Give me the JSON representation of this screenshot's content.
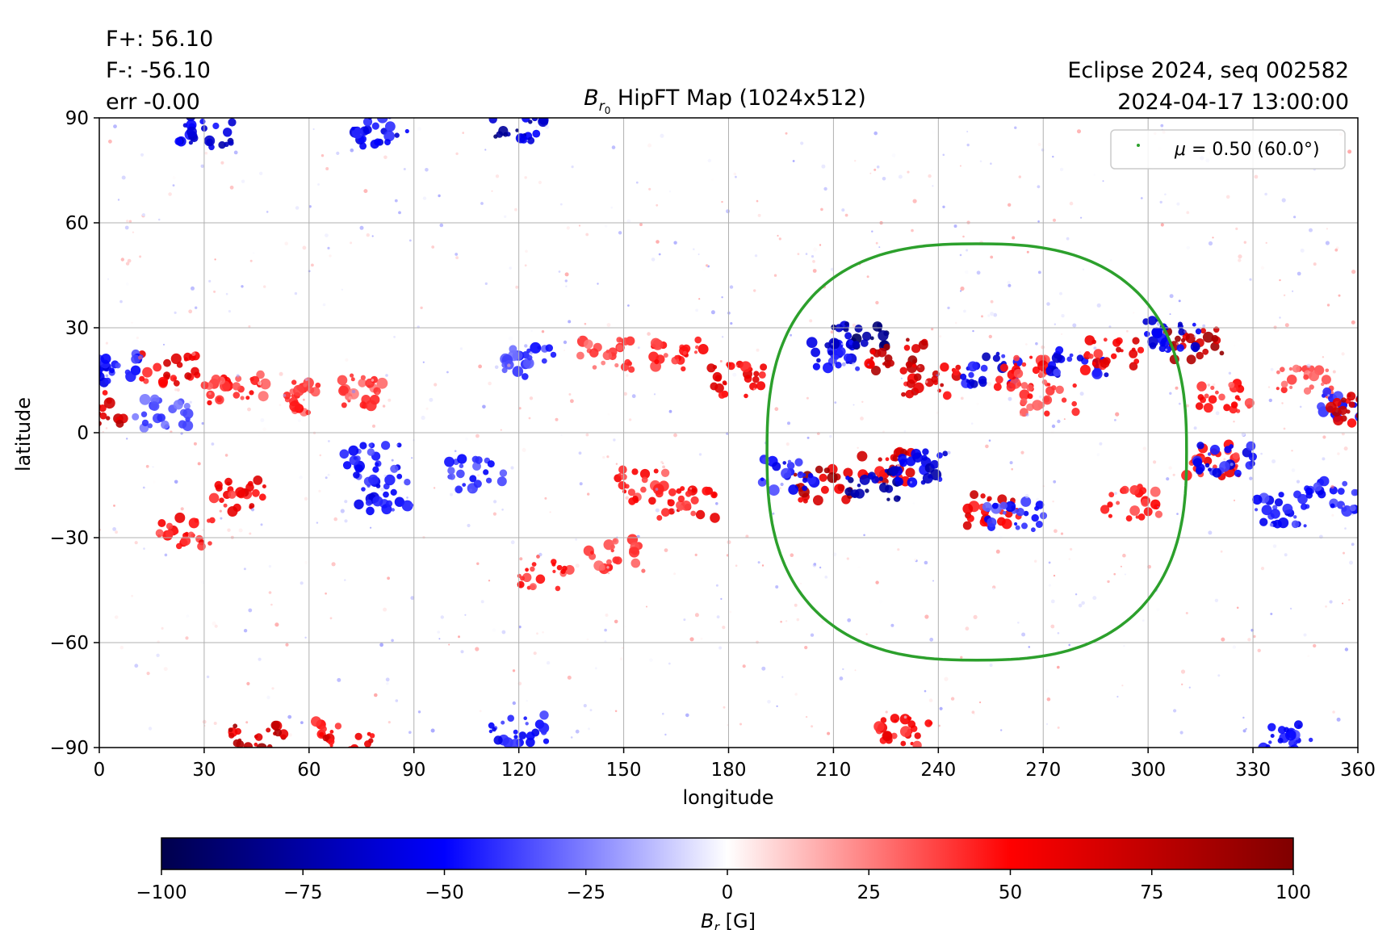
{
  "header": {
    "flux_pos": "F+: 56.10",
    "flux_neg": "F-: -56.10",
    "err": "err -0.00",
    "title_sym": "B",
    "title_sub": "r",
    "title_subsub": "0",
    "title_rest": " HipFT Map (1024x512)",
    "event": "Eclipse 2024, seq 002582",
    "datetime": "2024-04-17 13:00:00"
  },
  "chart_data": {
    "type": "heatmap",
    "title": "Br0 HipFT Map (1024x512)",
    "xlabel": "longitude",
    "ylabel": "latitude",
    "xlim": [
      0,
      360
    ],
    "ylim": [
      -90,
      90
    ],
    "x_ticks": [
      0,
      30,
      60,
      90,
      120,
      150,
      180,
      210,
      240,
      270,
      300,
      330,
      360
    ],
    "y_ticks": [
      -90,
      -60,
      -30,
      0,
      30,
      60,
      90
    ],
    "y_tick_labels": [
      "−90",
      "−60",
      "−30",
      "0",
      "30",
      "60",
      "90"
    ],
    "grid": true,
    "legend": {
      "placement": "top-right",
      "label_prefix": "μ = ",
      "label_value": "0.50 (60.0°)",
      "color": "#2ca02c"
    },
    "overlay_curve": {
      "name": "μ = 0.50 (60.0°)",
      "center_lon": 251,
      "center_lat": -6,
      "extent_lon": [
        191,
        311
      ],
      "extent_lat": [
        -65,
        54
      ],
      "color": "#2ca02c"
    },
    "colorbar": {
      "label_sym": "B",
      "label_sub": "r",
      "label_unit": " [G]",
      "vmin": -100,
      "vmax": 100,
      "ticks": [
        -100,
        -75,
        -50,
        -25,
        0,
        25,
        50,
        75,
        100
      ],
      "tick_labels": [
        "−100",
        "−75",
        "−50",
        "−25",
        "0",
        "25",
        "50",
        "75",
        "100"
      ],
      "colormap": "seismic",
      "colors": [
        "#00004c",
        "#0000ff",
        "#ffffff",
        "#ff0000",
        "#800000"
      ]
    },
    "field_regions": [
      {
        "lon": 20,
        "lat": 18,
        "value": 70
      },
      {
        "lon": 38,
        "lat": 12,
        "value": 55
      },
      {
        "lon": 5,
        "lat": 18,
        "value": -60
      },
      {
        "lon": 18,
        "lat": 5,
        "value": -45
      },
      {
        "lon": 55,
        "lat": 10,
        "value": 50
      },
      {
        "lon": 73,
        "lat": 12,
        "value": 45
      },
      {
        "lon": 40,
        "lat": -18,
        "value": 65
      },
      {
        "lon": 25,
        "lat": -28,
        "value": 60
      },
      {
        "lon": 78,
        "lat": -8,
        "value": -55
      },
      {
        "lon": 82,
        "lat": -18,
        "value": -60
      },
      {
        "lon": 108,
        "lat": -12,
        "value": -55
      },
      {
        "lon": 123,
        "lat": 20,
        "value": -50
      },
      {
        "lon": 145,
        "lat": 22,
        "value": 45
      },
      {
        "lon": 165,
        "lat": 22,
        "value": 55
      },
      {
        "lon": 183,
        "lat": 15,
        "value": 65
      },
      {
        "lon": 155,
        "lat": -15,
        "value": 55
      },
      {
        "lon": 168,
        "lat": -20,
        "value": 60
      },
      {
        "lon": 148,
        "lat": -35,
        "value": 50
      },
      {
        "lon": 128,
        "lat": -40,
        "value": 55
      },
      {
        "lon": 218,
        "lat": 28,
        "value": -95
      },
      {
        "lon": 210,
        "lat": 22,
        "value": -70
      },
      {
        "lon": 228,
        "lat": 22,
        "value": 90
      },
      {
        "lon": 238,
        "lat": 15,
        "value": 75
      },
      {
        "lon": 255,
        "lat": 18,
        "value": -70
      },
      {
        "lon": 265,
        "lat": 17,
        "value": 55
      },
      {
        "lon": 280,
        "lat": 20,
        "value": -65
      },
      {
        "lon": 290,
        "lat": 22,
        "value": 70
      },
      {
        "lon": 272,
        "lat": 10,
        "value": 50
      },
      {
        "lon": 207,
        "lat": -15,
        "value": 95
      },
      {
        "lon": 225,
        "lat": -10,
        "value": 80
      },
      {
        "lon": 222,
        "lat": -15,
        "value": -90
      },
      {
        "lon": 235,
        "lat": -10,
        "value": -80
      },
      {
        "lon": 197,
        "lat": -12,
        "value": -60
      },
      {
        "lon": 255,
        "lat": -22,
        "value": 75
      },
      {
        "lon": 262,
        "lat": -24,
        "value": -55
      },
      {
        "lon": 295,
        "lat": -20,
        "value": 55
      },
      {
        "lon": 313,
        "lat": 25,
        "value": 95
      },
      {
        "lon": 307,
        "lat": 28,
        "value": -70
      },
      {
        "lon": 322,
        "lat": 10,
        "value": 55
      },
      {
        "lon": 318,
        "lat": -8,
        "value": 60
      },
      {
        "lon": 322,
        "lat": -8,
        "value": -65
      },
      {
        "lon": 338,
        "lat": -22,
        "value": -60
      },
      {
        "lon": 352,
        "lat": -18,
        "value": -55
      },
      {
        "lon": 345,
        "lat": 15,
        "value": 45
      },
      {
        "lon": 357,
        "lat": 8,
        "value": -55
      },
      {
        "lon": 360,
        "lat": 7,
        "value": 80
      },
      {
        "lon": 0,
        "lat": 7,
        "value": 80
      },
      {
        "lon": 30,
        "lat": 86,
        "value": -80
      },
      {
        "lon": 80,
        "lat": 86,
        "value": -65
      },
      {
        "lon": 120,
        "lat": 88,
        "value": -90
      },
      {
        "lon": 45,
        "lat": -88,
        "value": 90
      },
      {
        "lon": 70,
        "lat": -87,
        "value": 70
      },
      {
        "lon": 120,
        "lat": -85,
        "value": -60
      },
      {
        "lon": 230,
        "lat": -86,
        "value": 60
      },
      {
        "lon": 340,
        "lat": -88,
        "value": -55
      }
    ]
  }
}
